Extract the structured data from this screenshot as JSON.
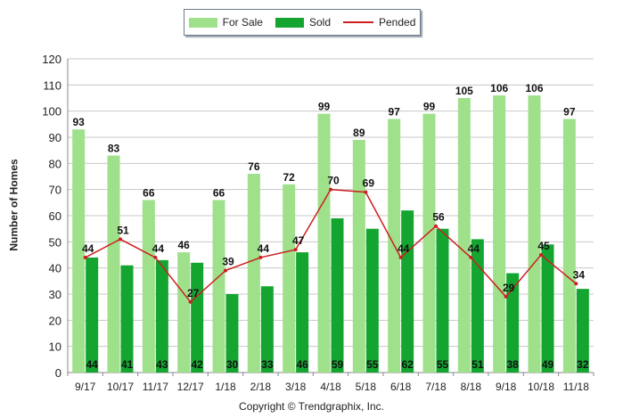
{
  "chart_data": {
    "type": "bar",
    "categories": [
      "9/17",
      "10/17",
      "11/17",
      "12/17",
      "1/18",
      "2/18",
      "3/18",
      "4/18",
      "5/18",
      "6/18",
      "7/18",
      "8/18",
      "9/18",
      "10/18",
      "11/18"
    ],
    "series": [
      {
        "name": "For Sale",
        "type": "bar",
        "color": "#9fe08b",
        "values": [
          93,
          83,
          66,
          46,
          66,
          76,
          72,
          99,
          89,
          97,
          99,
          105,
          106,
          106,
          97
        ]
      },
      {
        "name": "Sold",
        "type": "bar",
        "color": "#14a531",
        "values": [
          44,
          41,
          43,
          42,
          30,
          33,
          46,
          59,
          55,
          62,
          55,
          51,
          38,
          49,
          32
        ]
      },
      {
        "name": "Pended",
        "type": "line",
        "color": "#cc1f1f",
        "values": [
          44,
          51,
          44,
          27,
          39,
          44,
          47,
          70,
          69,
          44,
          56,
          44,
          29,
          45,
          34
        ]
      }
    ],
    "ylabel": "Number of Homes",
    "ylim": [
      0,
      120
    ],
    "yticks": [
      0,
      10,
      20,
      30,
      40,
      50,
      60,
      70,
      80,
      90,
      100,
      110,
      120
    ],
    "grid": true,
    "legend_position": "top-center"
  },
  "legend": {
    "for_sale": "For Sale",
    "sold": "Sold",
    "pended": "Pended"
  },
  "axis": {
    "ylabel": "Number of Homes"
  },
  "footer": {
    "copyright": "Copyright © Trendgraphix, Inc."
  },
  "colors": {
    "for_sale": "#9fe08b",
    "sold": "#14a531",
    "pended": "#cc1f1f",
    "grid": "#c8c8c8",
    "axis": "#888888"
  }
}
